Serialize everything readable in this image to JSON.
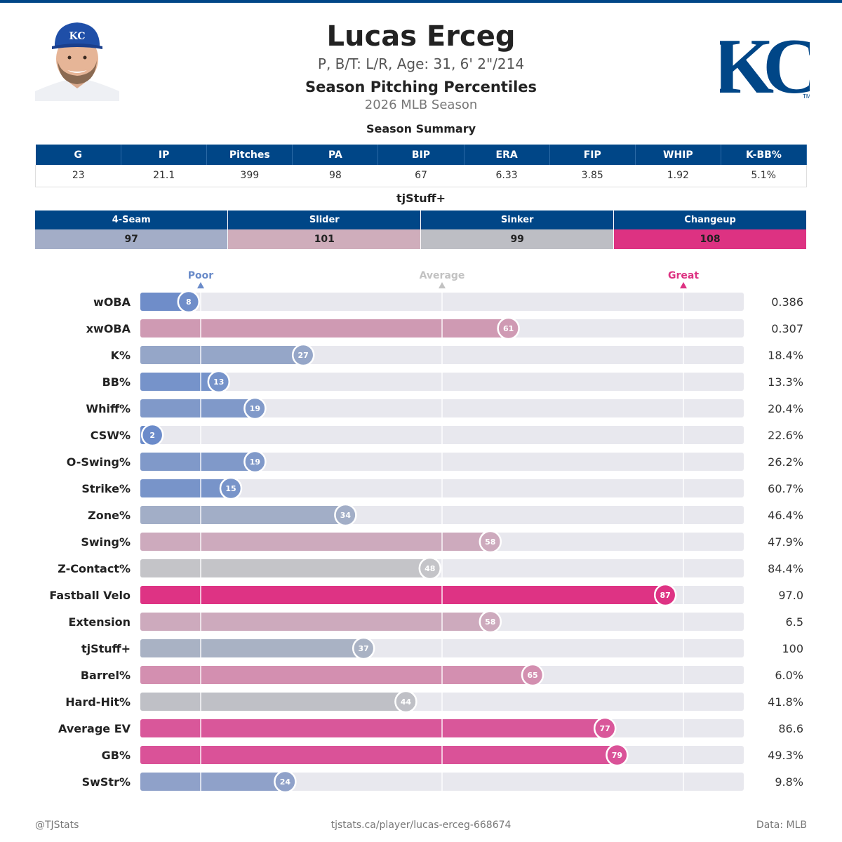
{
  "player": {
    "name": "Lucas Erceg",
    "bio": "P, B/T: L/R, Age: 31, 6' 2\"/214",
    "report_title": "Season Pitching Percentiles",
    "season": "2026 MLB Season",
    "team_logo_text": "KC"
  },
  "summary": {
    "title": "Season Summary",
    "headers": [
      "G",
      "IP",
      "Pitches",
      "PA",
      "BIP",
      "ERA",
      "FIP",
      "WHIP",
      "K-BB%"
    ],
    "values": [
      "23",
      "21.1",
      "399",
      "98",
      "67",
      "6.33",
      "3.85",
      "1.92",
      "5.1%"
    ]
  },
  "tjstuff": {
    "title": "tjStuff+",
    "pitches": [
      {
        "name": "4-Seam",
        "value": "97",
        "color": "#a3adc7"
      },
      {
        "name": "Slider",
        "value": "101",
        "color": "#cfadbb"
      },
      {
        "name": "Sinker",
        "value": "99",
        "color": "#bdbec4"
      },
      {
        "name": "Changeup",
        "value": "108",
        "color": "#dd3282"
      }
    ]
  },
  "colors": {
    "brand": "#004687",
    "poor": "#6a8bc9",
    "average": "#c2c2c2",
    "great": "#dd3282",
    "track": "#e8e8ee"
  },
  "chart_data": {
    "type": "bar",
    "orientation": "horizontal",
    "xlim": [
      0,
      100
    ],
    "reference_lines": [
      {
        "label": "Poor",
        "value": 10
      },
      {
        "label": "Average",
        "value": 50
      },
      {
        "label": "Great",
        "value": 90
      }
    ],
    "rows": [
      {
        "metric": "wOBA",
        "percentile": 8,
        "value": "0.386",
        "color": "#6f8dc9"
      },
      {
        "metric": "xwOBA",
        "percentile": 61,
        "value": "0.307",
        "color": "#cf9ab3"
      },
      {
        "metric": "K%",
        "percentile": 27,
        "value": "18.4%",
        "color": "#95a6c8"
      },
      {
        "metric": "BB%",
        "percentile": 13,
        "value": "13.3%",
        "color": "#7693ca"
      },
      {
        "metric": "Whiff%",
        "percentile": 19,
        "value": "20.4%",
        "color": "#8099c9"
      },
      {
        "metric": "CSW%",
        "percentile": 2,
        "value": "22.6%",
        "color": "#6b8bca"
      },
      {
        "metric": "O-Swing%",
        "percentile": 19,
        "value": "26.2%",
        "color": "#8099c9"
      },
      {
        "metric": "Strike%",
        "percentile": 15,
        "value": "60.7%",
        "color": "#7894c9"
      },
      {
        "metric": "Zone%",
        "percentile": 34,
        "value": "46.4%",
        "color": "#a2aec7"
      },
      {
        "metric": "Swing%",
        "percentile": 58,
        "value": "47.9%",
        "color": "#cdaabd"
      },
      {
        "metric": "Z-Contact%",
        "percentile": 48,
        "value": "84.4%",
        "color": "#c4c4c8"
      },
      {
        "metric": "Fastball Velo",
        "percentile": 87,
        "value": "97.0",
        "color": "#de3384"
      },
      {
        "metric": "Extension",
        "percentile": 58,
        "value": "6.5",
        "color": "#cdaabd"
      },
      {
        "metric": "tjStuff+",
        "percentile": 37,
        "value": "100",
        "color": "#a9b2c4"
      },
      {
        "metric": "Barrel%",
        "percentile": 65,
        "value": "6.0%",
        "color": "#d38fb0"
      },
      {
        "metric": "Hard-Hit%",
        "percentile": 44,
        "value": "41.8%",
        "color": "#bfc0c6"
      },
      {
        "metric": "Average EV",
        "percentile": 77,
        "value": "86.6",
        "color": "#d9579a"
      },
      {
        "metric": "GB%",
        "percentile": 79,
        "value": "49.3%",
        "color": "#da5298"
      },
      {
        "metric": "SwStr%",
        "percentile": 24,
        "value": "9.8%",
        "color": "#8fa1c9"
      }
    ]
  },
  "footer": {
    "left": "@TJStats",
    "center": "tjstats.ca/player/lucas-erceg-668674",
    "right": "Data: MLB"
  }
}
